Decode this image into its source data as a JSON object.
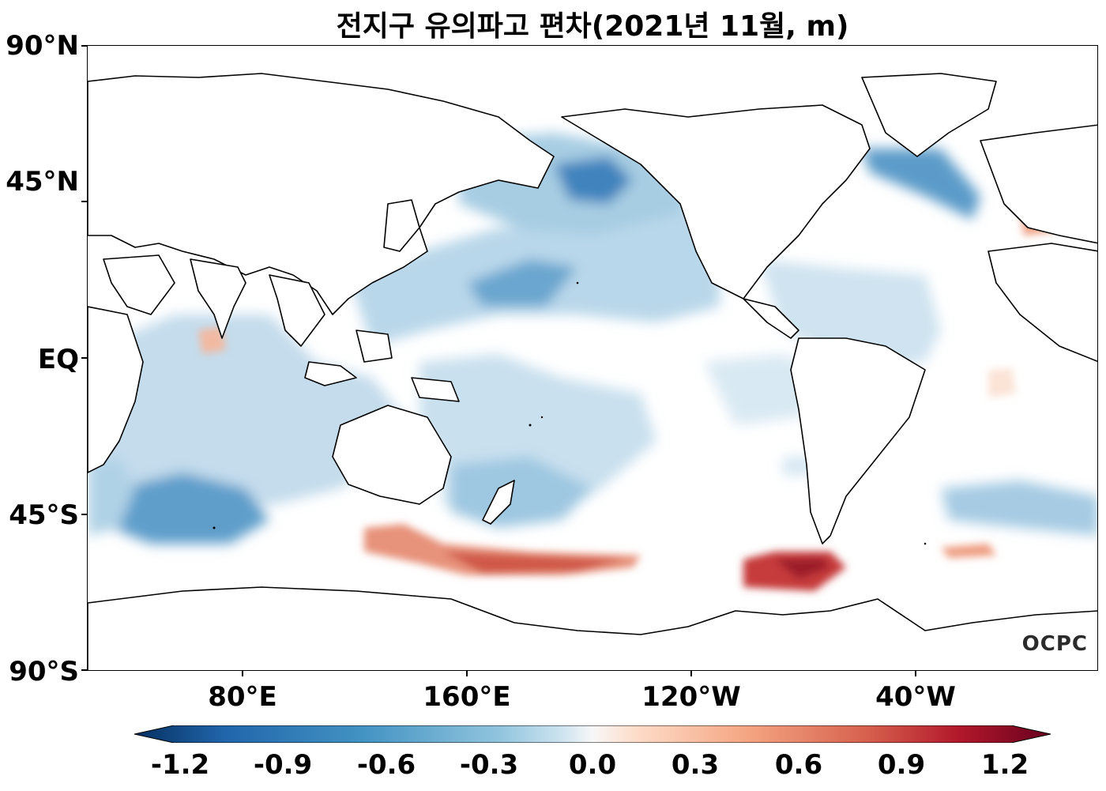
{
  "title": "전지구 유의파고 편차(2021년 11월, m)",
  "y_axis_labels": [
    "90°N",
    "45°N",
    "EQ",
    "45°S",
    "90°S"
  ],
  "x_axis_labels": [
    "80°E",
    "160°E",
    "120°W",
    "40°W"
  ],
  "colorbar": {
    "labels": [
      "-1.2",
      "-0.9",
      "-0.6",
      "-0.3",
      "0.0",
      "0.3",
      "0.6",
      "0.9",
      "1.2"
    ],
    "colormap": "RdBu_r",
    "min": -1.2,
    "max": 1.2,
    "colors": [
      "#053061",
      "#2166ac",
      "#4393c3",
      "#92c5de",
      "#d1e5f0",
      "#f7f7f7",
      "#fddbc7",
      "#f4a582",
      "#d6604d",
      "#b2182b",
      "#67001f"
    ]
  },
  "watermark": "OCPC"
}
